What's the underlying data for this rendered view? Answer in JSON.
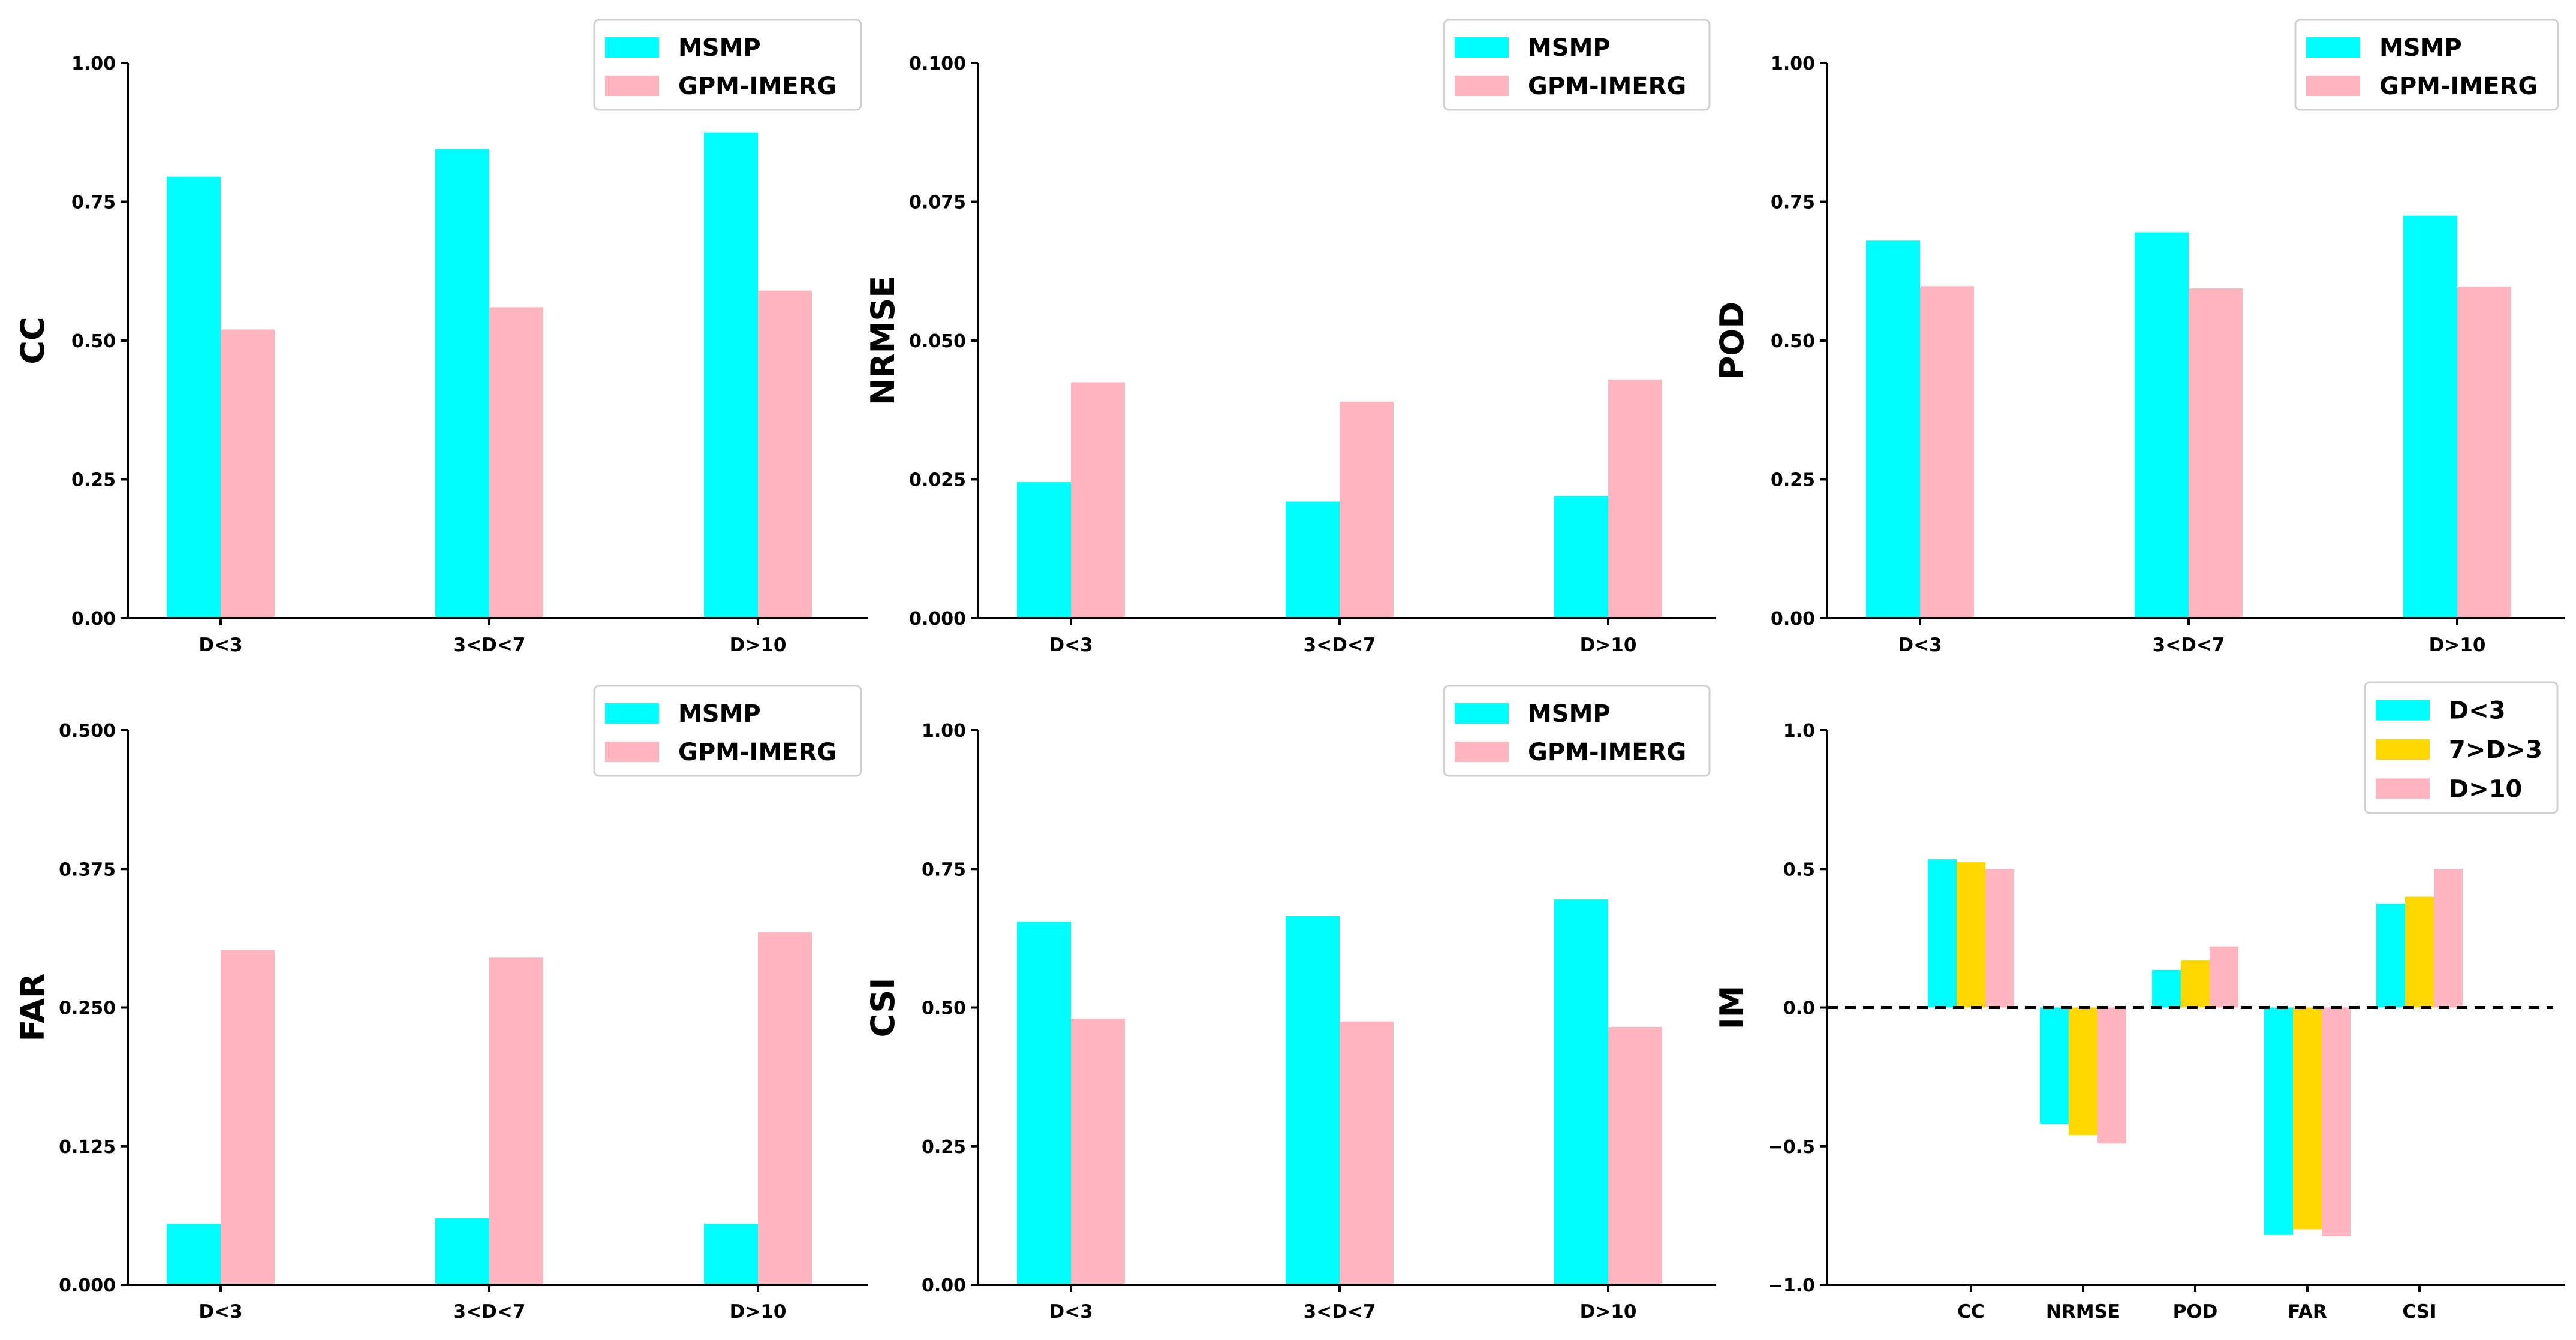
{
  "colors": {
    "msmp": "#00ffff",
    "gpm": "#ffb6c1",
    "mid": "#ffd700"
  },
  "chart_data": [
    {
      "id": "cc",
      "type": "bar",
      "ylabel": "CC",
      "categories": [
        "D<3",
        "3<D<7",
        "D>10"
      ],
      "series": [
        {
          "name": "MSMP",
          "values": [
            0.795,
            0.845,
            0.875
          ],
          "color": "#00ffff"
        },
        {
          "name": "GPM-IMERG",
          "values": [
            0.52,
            0.56,
            0.59
          ],
          "color": "#ffb6c1"
        }
      ],
      "ylim": [
        0,
        1.0
      ],
      "yticks": [
        "0.00",
        "0.25",
        "0.50",
        "0.75",
        "1.00"
      ],
      "legend": "top-right",
      "zero_line": false
    },
    {
      "id": "nrmse",
      "type": "bar",
      "ylabel": "NRMSE",
      "categories": [
        "D<3",
        "3<D<7",
        "D>10"
      ],
      "series": [
        {
          "name": "MSMP",
          "values": [
            0.0245,
            0.021,
            0.022
          ],
          "color": "#00ffff"
        },
        {
          "name": "GPM-IMERG",
          "values": [
            0.0425,
            0.039,
            0.043
          ],
          "color": "#ffb6c1"
        }
      ],
      "ylim": [
        0,
        0.1
      ],
      "yticks": [
        "0.000",
        "0.025",
        "0.050",
        "0.075",
        "0.100"
      ],
      "legend": "top-right",
      "zero_line": false
    },
    {
      "id": "pod",
      "type": "bar",
      "ylabel": "POD",
      "categories": [
        "D<3",
        "3<D<7",
        "D>10"
      ],
      "series": [
        {
          "name": "MSMP",
          "values": [
            0.68,
            0.695,
            0.725
          ],
          "color": "#00ffff"
        },
        {
          "name": "GPM-IMERG",
          "values": [
            0.598,
            0.594,
            0.597
          ],
          "color": "#ffb6c1"
        }
      ],
      "ylim": [
        0,
        1.0
      ],
      "yticks": [
        "0.00",
        "0.25",
        "0.50",
        "0.75",
        "1.00"
      ],
      "legend": "top-right",
      "zero_line": false
    },
    {
      "id": "far",
      "type": "bar",
      "ylabel": "FAR",
      "categories": [
        "D<3",
        "3<D<7",
        "D>10"
      ],
      "series": [
        {
          "name": "MSMP",
          "values": [
            0.055,
            0.06,
            0.055
          ],
          "color": "#00ffff"
        },
        {
          "name": "GPM-IMERG",
          "values": [
            0.302,
            0.295,
            0.318
          ],
          "color": "#ffb6c1"
        }
      ],
      "ylim": [
        0,
        0.5
      ],
      "yticks": [
        "0.000",
        "0.125",
        "0.250",
        "0.375",
        "0.500"
      ],
      "legend": "top-right",
      "zero_line": false
    },
    {
      "id": "csi",
      "type": "bar",
      "ylabel": "CSI",
      "categories": [
        "D<3",
        "3<D<7",
        "D>10"
      ],
      "series": [
        {
          "name": "MSMP",
          "values": [
            0.655,
            0.665,
            0.695
          ],
          "color": "#00ffff"
        },
        {
          "name": "GPM-IMERG",
          "values": [
            0.48,
            0.475,
            0.465
          ],
          "color": "#ffb6c1"
        }
      ],
      "ylim": [
        0,
        1.0
      ],
      "yticks": [
        "0.00",
        "0.25",
        "0.50",
        "0.75",
        "1.00"
      ],
      "legend": "top-right",
      "zero_line": false
    },
    {
      "id": "im",
      "type": "bar",
      "ylabel": "IM",
      "categories": [
        "CC",
        "NRMSE",
        "POD",
        "FAR",
        "CSI"
      ],
      "series": [
        {
          "name": "D<3",
          "values": [
            0.535,
            -0.42,
            0.135,
            -0.82,
            0.375
          ],
          "color": "#00ffff"
        },
        {
          "name": "7>D>3",
          "values": [
            0.525,
            -0.46,
            0.17,
            -0.8,
            0.4
          ],
          "color": "#ffd700"
        },
        {
          "name": "D>10",
          "values": [
            0.5,
            -0.49,
            0.22,
            -0.825,
            0.5
          ],
          "color": "#ffb6c1"
        }
      ],
      "ylim": [
        -1.0,
        1.0
      ],
      "yticks": [
        "−1.0",
        "−0.5",
        "0.0",
        "0.5",
        "1.0"
      ],
      "legend": "top-right",
      "zero_line": true
    }
  ]
}
